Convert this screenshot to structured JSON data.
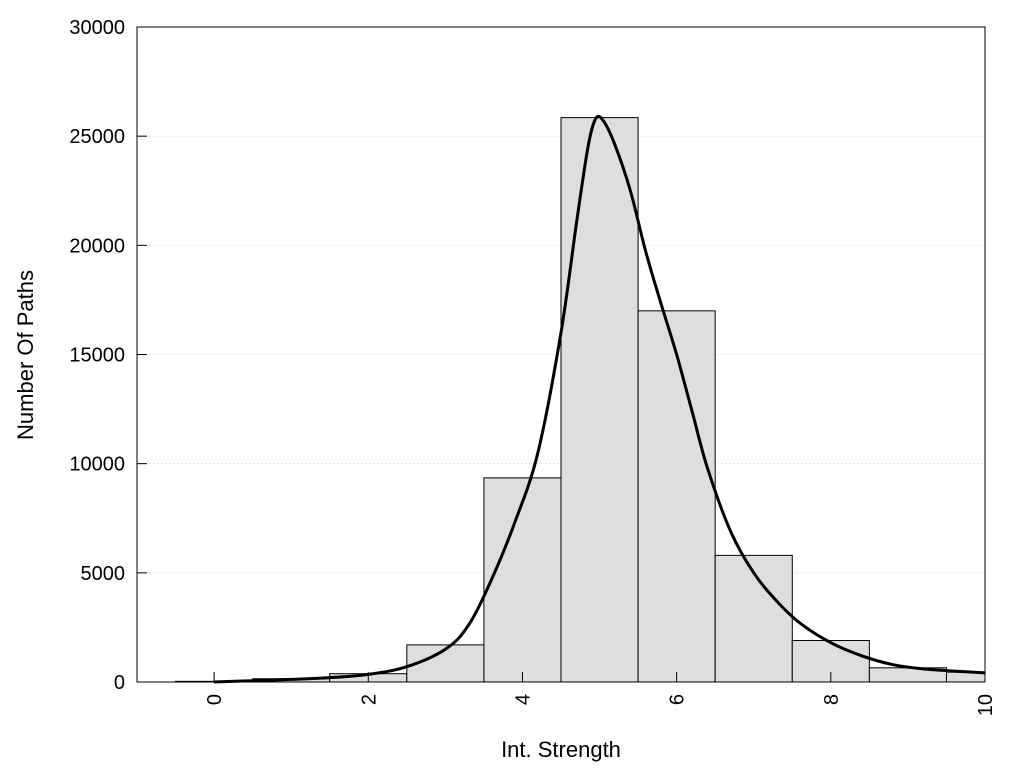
{
  "chart_data": {
    "type": "bar",
    "title": "",
    "xlabel": "Int. Strength",
    "ylabel": "Number Of Paths",
    "xlim": [
      -1,
      10
    ],
    "ylim": [
      0,
      30000
    ],
    "x_ticks": [
      0,
      2,
      4,
      6,
      8,
      10
    ],
    "y_ticks": [
      0,
      5000,
      10000,
      15000,
      20000,
      25000,
      30000
    ],
    "grid": "horizontal dotted",
    "bar_color": "#dedede",
    "bar_width": 1,
    "x": [
      0,
      1,
      2,
      3,
      4,
      5,
      6,
      7,
      8,
      9,
      10
    ],
    "values": [
      30,
      150,
      380,
      1700,
      9350,
      25850,
      17000,
      5800,
      1900,
      650,
      450
    ],
    "curve": {
      "x": [
        0,
        0.5,
        1,
        1.5,
        2,
        2.5,
        3,
        3.3,
        3.6,
        3.9,
        4.2,
        4.5,
        4.7,
        4.85,
        4.95,
        5.05,
        5.2,
        5.4,
        5.6,
        5.8,
        6.0,
        6.2,
        6.4,
        6.7,
        7.0,
        7.3,
        7.6,
        8.0,
        8.4,
        8.8,
        9.2,
        9.6,
        10
      ],
      "y": [
        0,
        60,
        120,
        200,
        350,
        700,
        1500,
        2600,
        4700,
        7300,
        10500,
        16000,
        21000,
        24500,
        25800,
        25700,
        24600,
        22500,
        19700,
        17300,
        15000,
        12400,
        9800,
        6900,
        5000,
        3700,
        2700,
        1800,
        1200,
        800,
        600,
        500,
        420
      ]
    }
  }
}
